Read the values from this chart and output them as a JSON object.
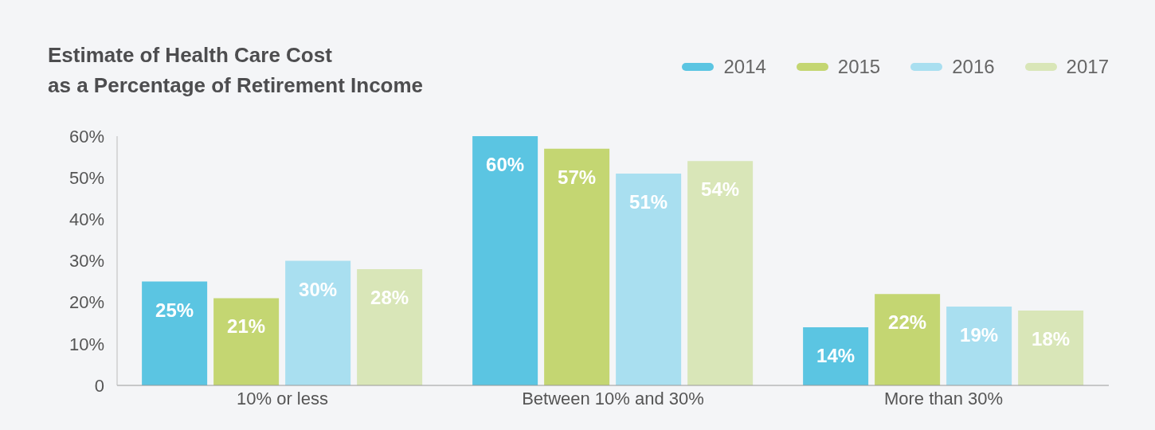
{
  "chart_data": {
    "type": "bar",
    "title": "Estimate of Health Care Cost\nas a Percentage of Retirement Income",
    "categories": [
      "10% or less",
      "Between 10% and 30%",
      "More than 30%"
    ],
    "series": [
      {
        "name": "2014",
        "color": "#5bc5e2",
        "values": [
          25,
          60,
          14
        ],
        "value_labels": [
          "25%",
          "60%",
          "14%"
        ]
      },
      {
        "name": "2015",
        "color": "#c4d672",
        "values": [
          21,
          57,
          22
        ],
        "value_labels": [
          "21%",
          "57%",
          "22%"
        ]
      },
      {
        "name": "2016",
        "color": "#a9dff0",
        "values": [
          30,
          51,
          19
        ],
        "value_labels": [
          "30%",
          "51%",
          "19%"
        ]
      },
      {
        "name": "2017",
        "color": "#d9e6b8",
        "values": [
          28,
          54,
          18
        ],
        "value_labels": [
          "28%",
          "54%",
          "18%"
        ]
      }
    ],
    "ylim": [
      0,
      60
    ],
    "yticks": [
      0,
      {
        "value": 10,
        "label": "10%"
      },
      {
        "value": 20,
        "label": "20%"
      },
      {
        "value": 30,
        "label": "30%"
      },
      {
        "value": 40,
        "label": "40%"
      },
      {
        "value": 50,
        "label": "50%"
      },
      {
        "value": 60,
        "label": "60%"
      }
    ],
    "grid": false,
    "legend": "top right"
  }
}
